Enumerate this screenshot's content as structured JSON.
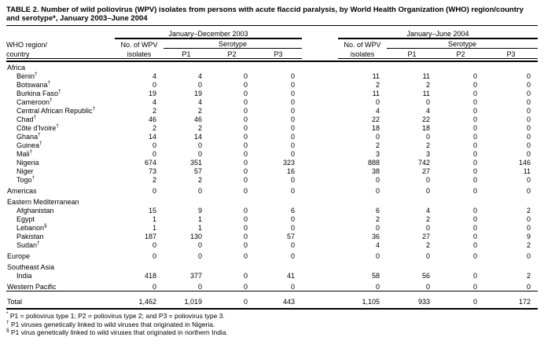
{
  "title": "TABLE 2. Number of wild poliovirus (WPV) isolates from persons with acute flaccid paralysis, by World Health Organization (WHO) region/country and serotype*, January 2003–June 2004",
  "table": {
    "group_headers": {
      "h2003": "January–December 2003",
      "h2004": "January–June 2004"
    },
    "col_headers": {
      "region_line1": "WHO region/",
      "region_line2": "country",
      "isolates_line1": "No. of WPV",
      "isolates_line2": "isolates",
      "serotype": "Serotype",
      "p1": "P1",
      "p2": "P2",
      "p3": "P3"
    },
    "rows": [
      {
        "type": "region-head",
        "label": "Africa",
        "sup": "",
        "values": null
      },
      {
        "type": "country",
        "label": "Benin",
        "sup": "†",
        "values": [
          "4",
          "4",
          "0",
          "0",
          "11",
          "11",
          "0",
          "0"
        ]
      },
      {
        "type": "country",
        "label": "Botswana",
        "sup": "†",
        "values": [
          "0",
          "0",
          "0",
          "0",
          "2",
          "2",
          "0",
          "0"
        ]
      },
      {
        "type": "country",
        "label": "Burkina Faso",
        "sup": "†",
        "values": [
          "19",
          "19",
          "0",
          "0",
          "11",
          "11",
          "0",
          "0"
        ]
      },
      {
        "type": "country",
        "label": "Cameroon",
        "sup": "†",
        "values": [
          "4",
          "4",
          "0",
          "0",
          "0",
          "0",
          "0",
          "0"
        ]
      },
      {
        "type": "country",
        "label": "Central African Republic",
        "sup": "†",
        "values": [
          "2",
          "2",
          "0",
          "0",
          "4",
          "4",
          "0",
          "0"
        ]
      },
      {
        "type": "country",
        "label": "Chad",
        "sup": "†",
        "values": [
          "46",
          "46",
          "0",
          "0",
          "22",
          "22",
          "0",
          "0"
        ]
      },
      {
        "type": "country",
        "label": "Côte d'Ivoire",
        "sup": "†",
        "values": [
          "2",
          "2",
          "0",
          "0",
          "18",
          "18",
          "0",
          "0"
        ]
      },
      {
        "type": "country",
        "label": "Ghana",
        "sup": "†",
        "values": [
          "14",
          "14",
          "0",
          "0",
          "0",
          "0",
          "0",
          "0"
        ]
      },
      {
        "type": "country",
        "label": "Guinea",
        "sup": "†",
        "values": [
          "0",
          "0",
          "0",
          "0",
          "2",
          "2",
          "0",
          "0"
        ]
      },
      {
        "type": "country",
        "label": "Mali",
        "sup": "†",
        "values": [
          "0",
          "0",
          "0",
          "0",
          "3",
          "3",
          "0",
          "0"
        ]
      },
      {
        "type": "country",
        "label": "Nigeria",
        "sup": "",
        "values": [
          "674",
          "351",
          "0",
          "323",
          "888",
          "742",
          "0",
          "146"
        ]
      },
      {
        "type": "country",
        "label": "Niger",
        "sup": "",
        "values": [
          "73",
          "57",
          "0",
          "16",
          "38",
          "27",
          "0",
          "11"
        ]
      },
      {
        "type": "country",
        "label": "Togo",
        "sup": "†",
        "values": [
          "2",
          "2",
          "0",
          "0",
          "0",
          "0",
          "0",
          "0"
        ]
      },
      {
        "type": "region",
        "label": "Americas",
        "sup": "",
        "values": [
          "0",
          "0",
          "0",
          "0",
          "0",
          "0",
          "0",
          "0"
        ]
      },
      {
        "type": "region-head",
        "label": "Eastern Mediterranean",
        "sup": "",
        "values": null
      },
      {
        "type": "country",
        "label": "Afghanistan",
        "sup": "",
        "values": [
          "15",
          "9",
          "0",
          "6",
          "6",
          "4",
          "0",
          "2"
        ]
      },
      {
        "type": "country",
        "label": "Egypt",
        "sup": "",
        "values": [
          "1",
          "1",
          "0",
          "0",
          "2",
          "2",
          "0",
          "0"
        ]
      },
      {
        "type": "country",
        "label": "Lebanon",
        "sup": "§",
        "values": [
          "1",
          "1",
          "0",
          "0",
          "0",
          "0",
          "0",
          "0"
        ]
      },
      {
        "type": "country",
        "label": "Pakistan",
        "sup": "",
        "values": [
          "187",
          "130",
          "0",
          "57",
          "36",
          "27",
          "0",
          "9"
        ]
      },
      {
        "type": "country",
        "label": "Sudan",
        "sup": "†",
        "values": [
          "0",
          "0",
          "0",
          "0",
          "4",
          "2",
          "0",
          "2"
        ]
      },
      {
        "type": "region",
        "label": "Europe",
        "sup": "",
        "values": [
          "0",
          "0",
          "0",
          "0",
          "0",
          "0",
          "0",
          "0"
        ]
      },
      {
        "type": "region-head",
        "label": "Southeast Asia",
        "sup": "",
        "values": null
      },
      {
        "type": "country",
        "label": "India",
        "sup": "",
        "values": [
          "418",
          "377",
          "0",
          "41",
          "58",
          "56",
          "0",
          "2"
        ]
      },
      {
        "type": "region",
        "label": "Western Pacific",
        "sup": "",
        "values": [
          "0",
          "0",
          "0",
          "0",
          "0",
          "0",
          "0",
          "0"
        ]
      },
      {
        "type": "total",
        "label": "Total",
        "sup": "",
        "values": [
          "1,462",
          "1,019",
          "0",
          "443",
          "1,105",
          "933",
          "0",
          "172"
        ]
      }
    ]
  },
  "footnotes": [
    {
      "marker": "*",
      "text": "P1 = poliovirus type 1; P2 = poliovirus type 2; and P3 = poliovirus type 3."
    },
    {
      "marker": "†",
      "text": "P1 viruses genetically linked to wild viruses that originated in Nigeria."
    },
    {
      "marker": "§",
      "text": "P1 virus genetically linked to wild viruses that originated in northern India."
    }
  ]
}
